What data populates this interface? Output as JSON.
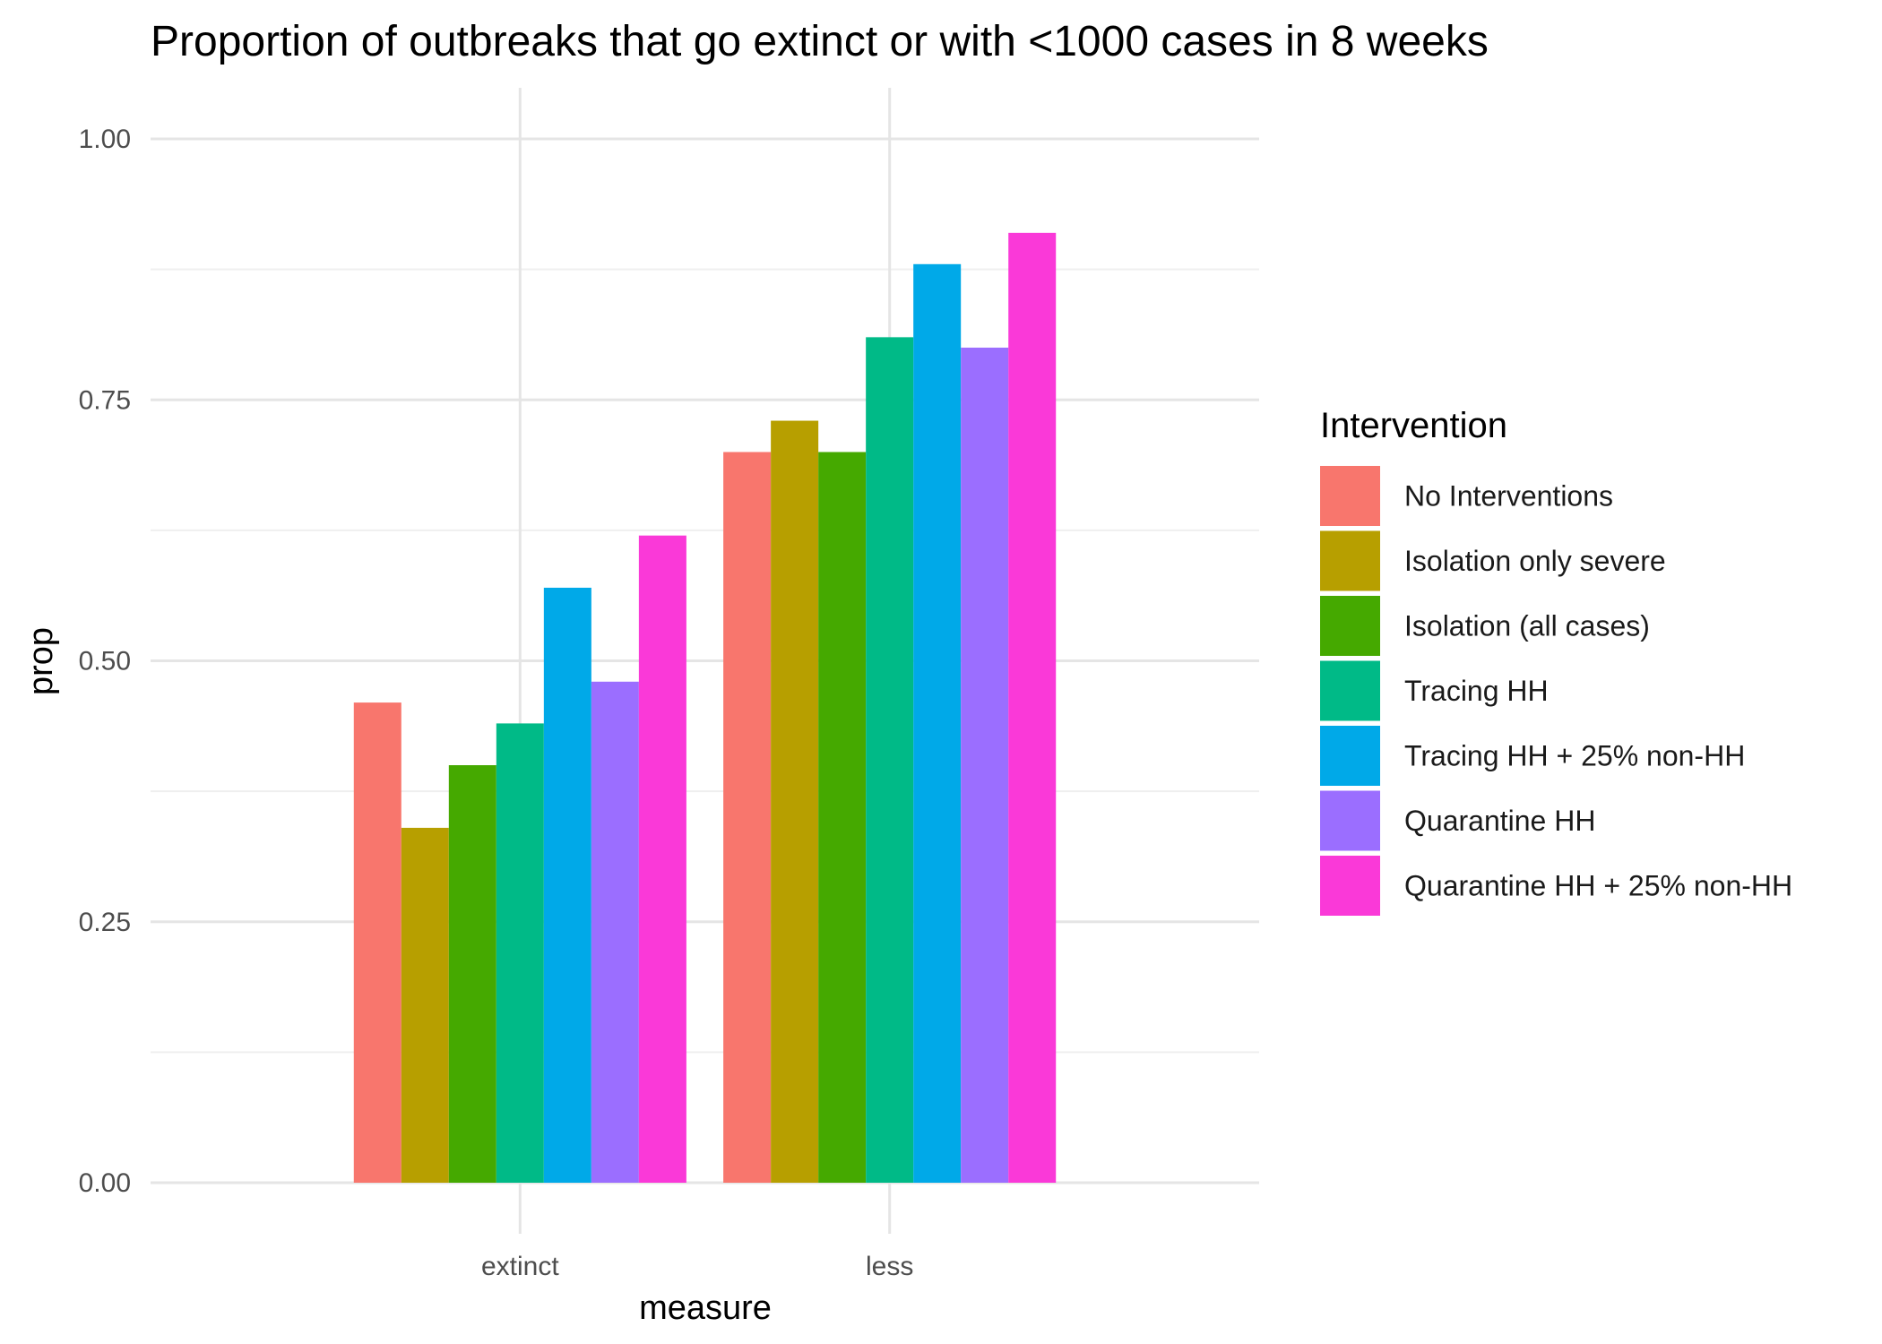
{
  "chart_data": {
    "type": "bar",
    "title": "Proportion of outbreaks that go extinct or with <1000 cases in 8 weeks",
    "xlabel": "measure",
    "ylabel": "prop",
    "categories": [
      "extinct",
      "less"
    ],
    "ylim": [
      0,
      1
    ],
    "yticks": [
      "0.00",
      "0.25",
      "0.50",
      "0.75",
      "1.00"
    ],
    "grid": true,
    "legend": {
      "title": "Intervention",
      "position": "right"
    },
    "series": [
      {
        "name": "No Interventions",
        "color": "#F8766D",
        "values": [
          0.46,
          0.7
        ]
      },
      {
        "name": "Isolation only severe",
        "color": "#B79F00",
        "values": [
          0.34,
          0.73
        ]
      },
      {
        "name": "Isolation (all cases)",
        "color": "#45A900",
        "values": [
          0.4,
          0.7
        ]
      },
      {
        "name": "Tracing HH",
        "color": "#00BA87",
        "values": [
          0.44,
          0.81
        ]
      },
      {
        "name": "Tracing HH + 25% non-HH",
        "color": "#00A9E8",
        "values": [
          0.57,
          0.88
        ]
      },
      {
        "name": "Quarantine HH",
        "color": "#9B6EFF",
        "values": [
          0.48,
          0.8
        ]
      },
      {
        "name": "Quarantine HH + 25% non-HH",
        "color": "#FA39D8",
        "values": [
          0.62,
          0.91
        ]
      }
    ]
  }
}
